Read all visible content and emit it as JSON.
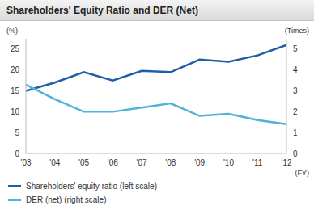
{
  "chart_data": {
    "type": "line",
    "title": "Shareholders' Equity Ratio and DER (Net)",
    "y_label": "(%)",
    "y2_label": "(Times)",
    "x_label": "(FY)",
    "categories": [
      "'03",
      "'04",
      "'05",
      "'06",
      "'07",
      "'08",
      "'09",
      "'10",
      "'11",
      "'12"
    ],
    "series": [
      {
        "name": "Shareholders' equity ratio (left scale)",
        "color": "#1f5fa8",
        "values": [
          15,
          17,
          19.5,
          17.5,
          19.8,
          19.5,
          22.5,
          22,
          23.5,
          26
        ]
      },
      {
        "name": "DER (net) (right scale)",
        "color": "#4fb3d9",
        "axis": "y2",
        "values": [
          3.3,
          2.6,
          2.0,
          2.0,
          2.2,
          2.4,
          1.8,
          1.9,
          1.6,
          1.4
        ]
      }
    ],
    "ylim": [
      0,
      27.5
    ],
    "yticks": [
      0,
      5,
      10,
      15,
      20,
      25
    ],
    "y2lim": [
      0,
      5.5
    ],
    "y2ticks": [
      0,
      1,
      2,
      3,
      4,
      5
    ],
    "grid": false
  }
}
